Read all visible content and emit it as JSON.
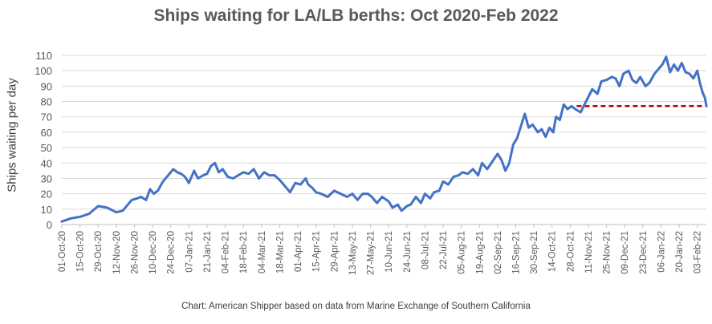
{
  "chart_data": {
    "type": "line",
    "title": "Ships waiting for LA/LB berths: Oct 2020-Feb 2022",
    "ylabel": "Ships waiting per day",
    "xlabel": "",
    "source": "Chart: American Shipper based on data from Marine Exchange of Southern California",
    "ylim": [
      0,
      110
    ],
    "yticks": [
      0,
      10,
      20,
      30,
      40,
      50,
      60,
      70,
      80,
      90,
      100,
      110
    ],
    "xlim": [
      "2020-10-01",
      "2022-02-10"
    ],
    "x_tick_labels": [
      "01-Oct-20",
      "15-Oct-20",
      "29-Oct-20",
      "12-Nov-20",
      "26-Nov-20",
      "10-Dec-20",
      "24-Dec-20",
      "07-Jan-21",
      "21-Jan-21",
      "04-Feb-21",
      "18-Feb-21",
      "04-Mar-21",
      "18-Mar-21",
      "01-Apr-21",
      "15-Apr-21",
      "29-Apr-21",
      "13-May-21",
      "27-May-21",
      "10-Jun-21",
      "24-Jun-21",
      "08-Jul-21",
      "22-Jul-21",
      "05-Aug-21",
      "19-Aug-21",
      "02-Sep-21",
      "16-Sep-21",
      "30-Sep-21",
      "14-Oct-21",
      "28-Oct-21",
      "11-Nov-21",
      "25-Nov-21",
      "09-Dec-21",
      "23-Dec-21",
      "06-Jan-22",
      "20-Jan-22",
      "03-Feb-22"
    ],
    "grid": "horizontal",
    "series": [
      {
        "color": "#4472c4",
        "points": [
          [
            "2020-10-01",
            2
          ],
          [
            "2020-10-08",
            4
          ],
          [
            "2020-10-15",
            5
          ],
          [
            "2020-10-22",
            7
          ],
          [
            "2020-10-29",
            12
          ],
          [
            "2020-11-05",
            11
          ],
          [
            "2020-11-12",
            8
          ],
          [
            "2020-11-17",
            9
          ],
          [
            "2020-11-24",
            16
          ],
          [
            "2020-11-28",
            17
          ],
          [
            "2020-12-01",
            18
          ],
          [
            "2020-12-05",
            16
          ],
          [
            "2020-12-08",
            23
          ],
          [
            "2020-12-11",
            20
          ],
          [
            "2020-12-14",
            22
          ],
          [
            "2020-12-18",
            28
          ],
          [
            "2020-12-22",
            32
          ],
          [
            "2020-12-26",
            36
          ],
          [
            "2020-12-29",
            34
          ],
          [
            "2021-01-01",
            33
          ],
          [
            "2021-01-04",
            31
          ],
          [
            "2021-01-07",
            27
          ],
          [
            "2021-01-11",
            35
          ],
          [
            "2021-01-14",
            30
          ],
          [
            "2021-01-18",
            32
          ],
          [
            "2021-01-21",
            33
          ],
          [
            "2021-01-24",
            38
          ],
          [
            "2021-01-27",
            40
          ],
          [
            "2021-01-30",
            34
          ],
          [
            "2021-02-02",
            36
          ],
          [
            "2021-02-06",
            31
          ],
          [
            "2021-02-10",
            30
          ],
          [
            "2021-02-14",
            32
          ],
          [
            "2021-02-18",
            34
          ],
          [
            "2021-02-22",
            33
          ],
          [
            "2021-02-26",
            36
          ],
          [
            "2021-03-02",
            30
          ],
          [
            "2021-03-06",
            34
          ],
          [
            "2021-03-10",
            32
          ],
          [
            "2021-03-14",
            32
          ],
          [
            "2021-03-18",
            29
          ],
          [
            "2021-03-22",
            25
          ],
          [
            "2021-03-26",
            21
          ],
          [
            "2021-03-30",
            27
          ],
          [
            "2021-04-03",
            26
          ],
          [
            "2021-04-07",
            30
          ],
          [
            "2021-04-09",
            26
          ],
          [
            "2021-04-12",
            24
          ],
          [
            "2021-04-15",
            21
          ],
          [
            "2021-04-19",
            20
          ],
          [
            "2021-04-24",
            18
          ],
          [
            "2021-04-29",
            22
          ],
          [
            "2021-05-04",
            20
          ],
          [
            "2021-05-09",
            18
          ],
          [
            "2021-05-13",
            20
          ],
          [
            "2021-05-17",
            16
          ],
          [
            "2021-05-21",
            20
          ],
          [
            "2021-05-25",
            20
          ],
          [
            "2021-05-28",
            18
          ],
          [
            "2021-06-01",
            14
          ],
          [
            "2021-06-05",
            18
          ],
          [
            "2021-06-10",
            15
          ],
          [
            "2021-06-13",
            11
          ],
          [
            "2021-06-17",
            13
          ],
          [
            "2021-06-20",
            9
          ],
          [
            "2021-06-24",
            12
          ],
          [
            "2021-06-27",
            13
          ],
          [
            "2021-07-01",
            18
          ],
          [
            "2021-07-05",
            14
          ],
          [
            "2021-07-08",
            20
          ],
          [
            "2021-07-12",
            17
          ],
          [
            "2021-07-15",
            21
          ],
          [
            "2021-07-19",
            22
          ],
          [
            "2021-07-22",
            28
          ],
          [
            "2021-07-26",
            26
          ],
          [
            "2021-07-30",
            31
          ],
          [
            "2021-08-03",
            32
          ],
          [
            "2021-08-06",
            34
          ],
          [
            "2021-08-10",
            33
          ],
          [
            "2021-08-14",
            36
          ],
          [
            "2021-08-18",
            32
          ],
          [
            "2021-08-21",
            40
          ],
          [
            "2021-08-25",
            36
          ],
          [
            "2021-08-29",
            41
          ],
          [
            "2021-09-02",
            46
          ],
          [
            "2021-09-05",
            42
          ],
          [
            "2021-09-08",
            35
          ],
          [
            "2021-09-11",
            40
          ],
          [
            "2021-09-14",
            52
          ],
          [
            "2021-09-17",
            56
          ],
          [
            "2021-09-20",
            64
          ],
          [
            "2021-09-23",
            72
          ],
          [
            "2021-09-26",
            63
          ],
          [
            "2021-09-29",
            65
          ],
          [
            "2021-10-03",
            60
          ],
          [
            "2021-10-06",
            62
          ],
          [
            "2021-10-09",
            57
          ],
          [
            "2021-10-12",
            63
          ],
          [
            "2021-10-15",
            60
          ],
          [
            "2021-10-17",
            70
          ],
          [
            "2021-10-20",
            68
          ],
          [
            "2021-10-23",
            78
          ],
          [
            "2021-10-26",
            75
          ],
          [
            "2021-10-29",
            77
          ],
          [
            "2021-11-01",
            75
          ],
          [
            "2021-11-05",
            73
          ],
          [
            "2021-11-08",
            78
          ],
          [
            "2021-11-11",
            83
          ],
          [
            "2021-11-14",
            88
          ],
          [
            "2021-11-18",
            85
          ],
          [
            "2021-11-21",
            93
          ],
          [
            "2021-11-25",
            94
          ],
          [
            "2021-11-29",
            96
          ],
          [
            "2021-12-02",
            95
          ],
          [
            "2021-12-05",
            90
          ],
          [
            "2021-12-08",
            98
          ],
          [
            "2021-12-12",
            100
          ],
          [
            "2021-12-15",
            94
          ],
          [
            "2021-12-18",
            92
          ],
          [
            "2021-12-21",
            96
          ],
          [
            "2021-12-25",
            90
          ],
          [
            "2021-12-28",
            92
          ],
          [
            "2022-01-01",
            98
          ],
          [
            "2022-01-04",
            101
          ],
          [
            "2022-01-07",
            104
          ],
          [
            "2022-01-10",
            109
          ],
          [
            "2022-01-13",
            99
          ],
          [
            "2022-01-16",
            104
          ],
          [
            "2022-01-19",
            100
          ],
          [
            "2022-01-22",
            105
          ],
          [
            "2022-01-25",
            99
          ],
          [
            "2022-01-28",
            98
          ],
          [
            "2022-01-31",
            95
          ],
          [
            "2022-02-03",
            100
          ],
          [
            "2022-02-05",
            92
          ],
          [
            "2022-02-07",
            86
          ],
          [
            "2022-02-09",
            82
          ],
          [
            "2022-02-10",
            77
          ]
        ]
      }
    ],
    "reference_line": {
      "y": 77,
      "x_start": "2021-11-02",
      "x_end": "2022-02-10",
      "color": "#c00000",
      "style": "dashed"
    }
  }
}
